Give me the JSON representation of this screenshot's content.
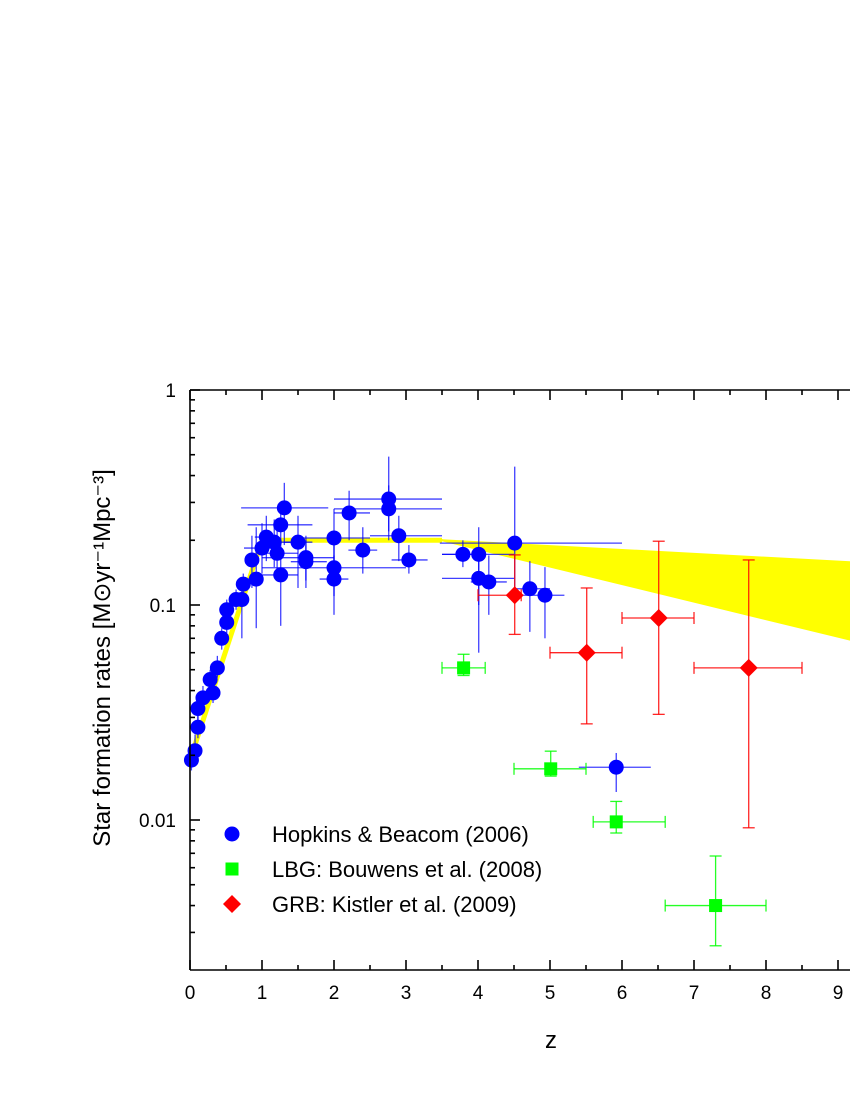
{
  "chart_data": {
    "type": "scatter",
    "xlabel": "z",
    "ylabel": "Star formation rates [M⊙yr⁻¹Mpc⁻³]",
    "xlim": [
      0,
      9.17
    ],
    "ylim": [
      0.002,
      1
    ],
    "yscale": "log",
    "x_ticks": [
      "0",
      "1",
      "2",
      "3",
      "4",
      "5",
      "6",
      "7",
      "8",
      "9"
    ],
    "y_ticks": [
      {
        "value": 1,
        "label": "1"
      },
      {
        "value": 0.1,
        "label": "0.1"
      },
      {
        "value": 0.01,
        "label": "0.01"
      }
    ],
    "grid": false,
    "legend_position": "bottom-left",
    "colors": {
      "hopkins": "#0000ff",
      "lbg": "#00ff00",
      "grb": "#ff0000",
      "model": "#ffff00"
    },
    "model": {
      "line": [
        [
          0,
          0.019
        ],
        [
          1,
          0.2
        ],
        [
          3.5,
          0.2
        ]
      ],
      "band_upper": [
        [
          3.5,
          0.2
        ],
        [
          9.17,
          0.158
        ]
      ],
      "band_lower": [
        [
          3.5,
          0.2
        ],
        [
          9.17,
          0.069
        ]
      ]
    },
    "series": [
      {
        "name": "Hopkins & Beacom (2006)",
        "marker": "circle",
        "color": "#0000ff",
        "points": [
          [
            0.02,
            0.019,
            0.0,
            0.04,
            0.017,
            0.022
          ],
          [
            0.07,
            0.021,
            0.05,
            0.1,
            0.018,
            0.025
          ],
          [
            0.11,
            0.027,
            0.08,
            0.14,
            0.024,
            0.031
          ],
          [
            0.11,
            0.033,
            0.08,
            0.14,
            0.029,
            0.037
          ],
          [
            0.18,
            0.037,
            0.15,
            0.21,
            0.033,
            0.042
          ],
          [
            0.28,
            0.045,
            0.25,
            0.31,
            0.04,
            0.05
          ],
          [
            0.32,
            0.039,
            0.28,
            0.36,
            0.035,
            0.044
          ],
          [
            0.38,
            0.051,
            0.34,
            0.42,
            0.046,
            0.058
          ],
          [
            0.44,
            0.07,
            0.4,
            0.48,
            0.062,
            0.078
          ],
          [
            0.51,
            0.083,
            0.45,
            0.57,
            0.074,
            0.093
          ],
          [
            0.51,
            0.095,
            0.45,
            0.57,
            0.085,
            0.106
          ],
          [
            0.64,
            0.106,
            0.6,
            0.7,
            0.095,
            0.118
          ],
          [
            0.72,
            0.106,
            0.65,
            0.8,
            0.07,
            0.12
          ],
          [
            0.74,
            0.125,
            0.7,
            0.8,
            0.11,
            0.14
          ],
          [
            0.86,
            0.162,
            0.8,
            0.95,
            0.12,
            0.21
          ],
          [
            0.92,
            0.132,
            0.8,
            1.0,
            0.078,
            0.23
          ],
          [
            1.0,
            0.184,
            0.75,
            1.25,
            0.14,
            0.24
          ],
          [
            1.06,
            0.207,
            0.9,
            1.2,
            0.16,
            0.26
          ],
          [
            1.17,
            0.196,
            1.0,
            1.4,
            0.15,
            0.25
          ],
          [
            1.21,
            0.174,
            1.0,
            1.5,
            0.13,
            0.23
          ],
          [
            1.26,
            0.236,
            0.8,
            1.7,
            0.18,
            0.3
          ],
          [
            1.26,
            0.138,
            1.0,
            1.5,
            0.08,
            0.18
          ],
          [
            1.31,
            0.283,
            0.71,
            1.92,
            0.19,
            0.37
          ],
          [
            1.5,
            0.196,
            1.3,
            1.7,
            0.12,
            0.26
          ],
          [
            1.61,
            0.166,
            1.0,
            2.0,
            0.13,
            0.21
          ],
          [
            1.61,
            0.159,
            1.4,
            1.9,
            0.12,
            0.2
          ],
          [
            2.0,
            0.205,
            1.5,
            2.5,
            0.15,
            0.28
          ],
          [
            2.0,
            0.149,
            1.0,
            3.0,
            0.11,
            0.2
          ],
          [
            2.0,
            0.132,
            1.8,
            2.2,
            0.09,
            0.17
          ],
          [
            2.21,
            0.268,
            2.0,
            2.5,
            0.2,
            0.34
          ],
          [
            2.4,
            0.18,
            2.2,
            2.6,
            0.14,
            0.23
          ],
          [
            2.76,
            0.311,
            2.0,
            3.5,
            0.22,
            0.49
          ],
          [
            2.76,
            0.28,
            2.0,
            3.5,
            0.2,
            0.36
          ],
          [
            2.9,
            0.21,
            2.5,
            3.5,
            0.16,
            0.26
          ],
          [
            3.04,
            0.162,
            2.8,
            3.3,
            0.14,
            0.19
          ],
          [
            3.79,
            0.172,
            3.5,
            4.1,
            0.15,
            0.2
          ],
          [
            4.01,
            0.172,
            3.5,
            4.5,
            0.1,
            0.23
          ],
          [
            4.01,
            0.133,
            3.5,
            4.5,
            0.06,
            0.17
          ],
          [
            4.15,
            0.128,
            3.9,
            4.4,
            0.09,
            0.17
          ],
          [
            4.51,
            0.194,
            3.47,
            6.0,
            0.11,
            0.44
          ],
          [
            4.72,
            0.119,
            4.5,
            5.0,
            0.075,
            0.16
          ],
          [
            4.93,
            0.111,
            4.6,
            5.2,
            0.07,
            0.15
          ],
          [
            5.92,
            0.0176,
            5.4,
            6.4,
            0.0135,
            0.0205
          ]
        ]
      },
      {
        "name": "LBG: Bouwens et al. (2008)",
        "marker": "square",
        "color": "#00ff00",
        "points": [
          [
            3.8,
            0.051,
            3.5,
            4.1,
            0.047,
            0.059
          ],
          [
            5.01,
            0.0173,
            4.5,
            5.5,
            0.016,
            0.0209
          ],
          [
            5.92,
            0.0098,
            5.6,
            6.6,
            0.0087,
            0.0122
          ],
          [
            7.3,
            0.004,
            6.6,
            8.0,
            0.0026,
            0.0068
          ]
        ]
      },
      {
        "name": "GRB: Kistler et al. (2009)",
        "marker": "diamond",
        "color": "#ff0000",
        "points": [
          [
            4.51,
            0.111,
            4.0,
            4.6,
            0.073,
            0.171
          ],
          [
            5.51,
            0.06,
            5.0,
            6.0,
            0.028,
            0.12
          ],
          [
            6.51,
            0.087,
            6.0,
            7.0,
            0.031,
            0.198
          ],
          [
            7.76,
            0.051,
            7.0,
            8.5,
            0.0092,
            0.162
          ]
        ]
      }
    ]
  }
}
